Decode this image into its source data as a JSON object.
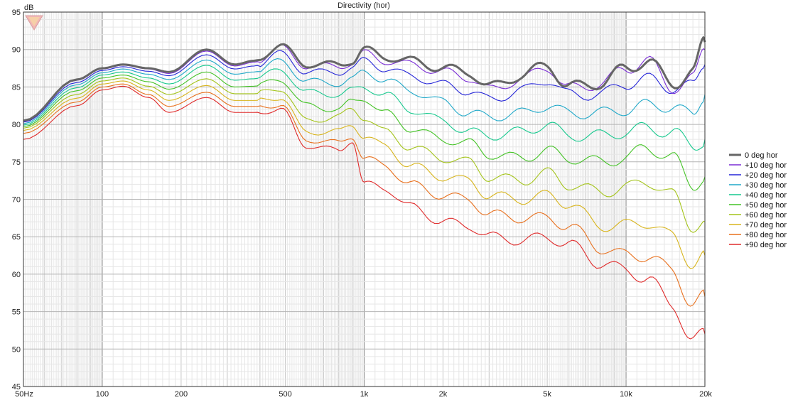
{
  "chart_data": {
    "type": "line",
    "title": "Directivity (hor)",
    "ylabel": "dB",
    "xlabel": "",
    "x_scale": "log",
    "xlim": [
      50,
      20000
    ],
    "ylim": [
      45,
      95
    ],
    "grid": true,
    "legend_position": "right",
    "x_ticks": [
      {
        "value": 50,
        "label": "50Hz"
      },
      {
        "value": 100,
        "label": "100"
      },
      {
        "value": 200,
        "label": "200"
      },
      {
        "value": 500,
        "label": "500"
      },
      {
        "value": 1000,
        "label": "1k"
      },
      {
        "value": 2000,
        "label": "2k"
      },
      {
        "value": 5000,
        "label": "5k"
      },
      {
        "value": 10000,
        "label": "10k"
      },
      {
        "value": 20000,
        "label": "20k"
      }
    ],
    "y_ticks": [
      95,
      90,
      85,
      80,
      75,
      70,
      65,
      60,
      55,
      50,
      45
    ],
    "x": [
      50,
      80,
      100,
      120,
      150,
      180,
      250,
      320,
      380,
      480,
      600,
      800,
      900,
      1000,
      1200,
      1500,
      2000,
      2500,
      3000,
      4000,
      5000,
      6000,
      8000,
      10000,
      12000,
      15000,
      18000,
      20000
    ],
    "series": [
      {
        "name": "0 deg hor",
        "color": "#666666",
        "bold": true,
        "values": [
          80.5,
          86,
          87.5,
          88,
          87.5,
          87,
          90,
          88,
          88.5,
          90.5,
          88,
          88,
          88.5,
          90,
          89,
          88.5,
          87.5,
          87,
          85,
          86.5,
          88,
          85,
          85.5,
          87.5,
          88.5,
          85.5,
          87,
          91
        ]
      },
      {
        "name": "+10 deg hor",
        "color": "#7b2fd6",
        "values": [
          80.4,
          85.9,
          87.4,
          87.9,
          87.4,
          86.8,
          89.8,
          87.8,
          88.3,
          90.3,
          87.8,
          87.8,
          88.2,
          89.5,
          88.5,
          88,
          87,
          86.3,
          84.6,
          86,
          87.7,
          84.8,
          85.4,
          87.5,
          88.5,
          85,
          86,
          90
        ]
      },
      {
        "name": "+20 deg hor",
        "color": "#2626d8",
        "values": [
          80.3,
          85.6,
          87.2,
          87.7,
          87.1,
          86.5,
          89.3,
          87.4,
          87.8,
          89.5,
          87,
          87,
          87.5,
          88.5,
          87.5,
          86.5,
          85.3,
          84.5,
          83.3,
          84.5,
          86,
          84,
          84,
          85.5,
          86,
          85,
          85,
          88
        ]
      },
      {
        "name": "+30 deg hor",
        "color": "#21a9c9",
        "values": [
          80.1,
          85.3,
          86.9,
          87.4,
          86.7,
          86,
          88.6,
          86.7,
          87,
          88.5,
          85.8,
          85.5,
          86,
          87,
          86,
          84.5,
          83,
          81.5,
          81,
          81.5,
          82.5,
          81.5,
          81.5,
          82,
          82.5,
          82.5,
          81,
          84
        ]
      },
      {
        "name": "+40 deg hor",
        "color": "#17c98e",
        "values": [
          79.9,
          84.9,
          86.6,
          87,
          86.2,
          85.4,
          87.9,
          85.9,
          86.1,
          87.3,
          84.3,
          84,
          84.5,
          85,
          84,
          82,
          80.5,
          79,
          78.5,
          79,
          80,
          78.5,
          78.5,
          79,
          79.5,
          79,
          77,
          78
        ]
      },
      {
        "name": "+50 deg hor",
        "color": "#44c326",
        "values": [
          79.7,
          84.5,
          86.2,
          86.6,
          85.7,
          84.7,
          87,
          85,
          85.1,
          86,
          82.5,
          82,
          83,
          83.5,
          81.5,
          79.5,
          78,
          77.5,
          76,
          75.5,
          76.5,
          75.5,
          75,
          75.5,
          77,
          75.5,
          72,
          73
        ]
      },
      {
        "name": "+60 deg hor",
        "color": "#a4c41b",
        "values": [
          79.5,
          84,
          85.8,
          86.2,
          85.1,
          84,
          86.1,
          84.1,
          84.1,
          84.8,
          80.5,
          81,
          82,
          81,
          79,
          77,
          75.5,
          75,
          73,
          72.5,
          73.5,
          72,
          71,
          71.5,
          72.5,
          70.5,
          66.5,
          67
        ]
      },
      {
        "name": "+70 deg hor",
        "color": "#d8b51e",
        "values": [
          79.2,
          83.5,
          85.4,
          85.8,
          84.6,
          83.2,
          85.2,
          83.2,
          83.2,
          83.6,
          79,
          79,
          80,
          78.5,
          77,
          74.5,
          73,
          72.5,
          70.5,
          70,
          70.5,
          69.5,
          66.5,
          66.5,
          67,
          65,
          61.5,
          62.5
        ]
      },
      {
        "name": "+80 deg hor",
        "color": "#e8701d",
        "values": [
          78.8,
          83,
          85,
          85.4,
          84,
          82.4,
          84.3,
          82.4,
          82.4,
          82.6,
          78,
          77.5,
          78.5,
          75.5,
          74.5,
          72,
          70.5,
          70,
          68,
          67.5,
          67.5,
          66.5,
          63.5,
          62.5,
          62.5,
          60.5,
          56,
          57
        ]
      },
      {
        "name": "+90 deg hor",
        "color": "#e02b2b",
        "values": [
          78,
          82.5,
          84.6,
          85.1,
          83.6,
          81.6,
          83.6,
          81.6,
          81.6,
          82,
          77.2,
          76.5,
          78,
          72,
          71.5,
          69,
          67,
          66.5,
          65,
          64.5,
          65,
          64,
          61.5,
          60.5,
          59.5,
          56,
          51,
          52
        ]
      }
    ]
  }
}
